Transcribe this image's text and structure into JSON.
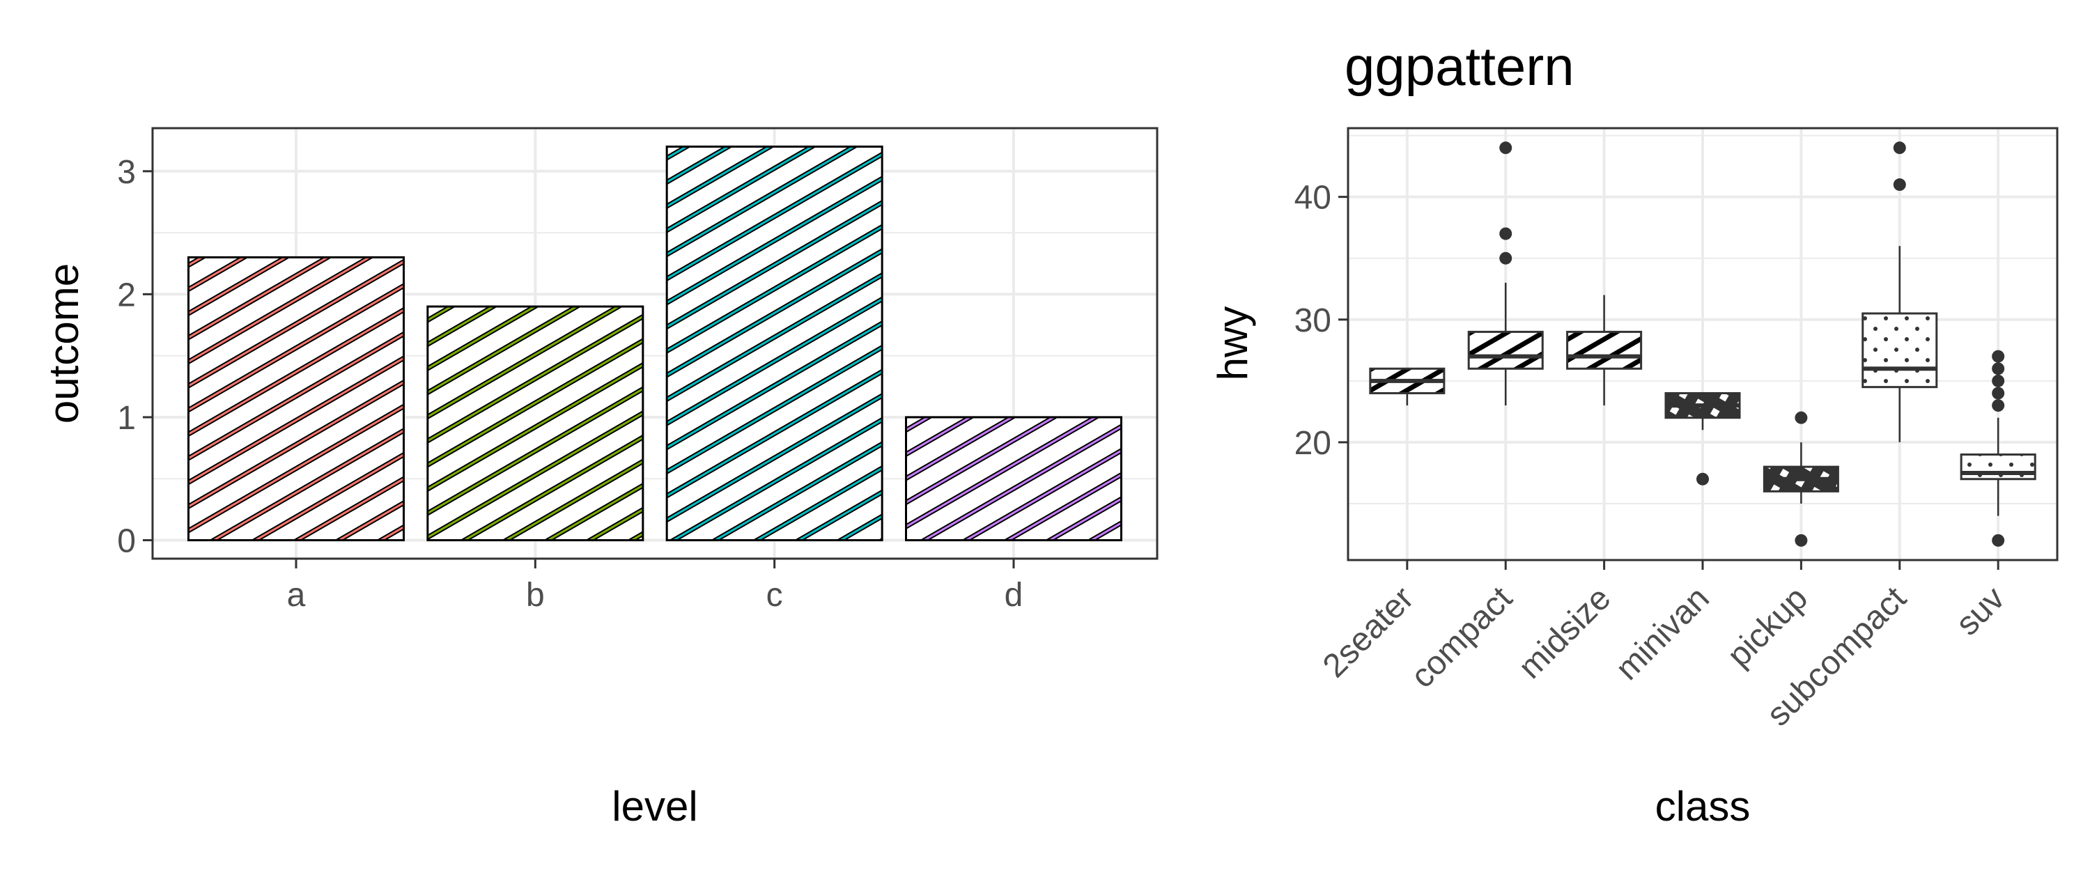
{
  "colors": {
    "panel_border": "#333333",
    "grid": "#ebebeb",
    "box_fill": "#ffffff",
    "box_stroke": "#333333",
    "bar_outline": "#000000"
  },
  "chart_data": [
    {
      "type": "bar",
      "title": "",
      "xlabel": "level",
      "ylabel": "outcome",
      "categories": [
        "a",
        "b",
        "c",
        "d"
      ],
      "values": [
        2.3,
        1.9,
        3.2,
        1.0
      ],
      "pattern": "stripe",
      "pattern_colors": [
        "#f8766d",
        "#7cae00",
        "#00bfc4",
        "#c77cff"
      ],
      "ylim": [
        -0.15,
        3.35
      ],
      "yticks": [
        0,
        1,
        2,
        3
      ],
      "grid": true,
      "legend": "none"
    },
    {
      "type": "box",
      "title": "ggpattern",
      "xlabel": "class",
      "ylabel": "hwy",
      "categories": [
        "2seater",
        "compact",
        "midsize",
        "minivan",
        "pickup",
        "subcompact",
        "suv"
      ],
      "boxes": [
        {
          "name": "2seater",
          "lower": 23,
          "q1": 24,
          "median": 25,
          "q3": 26,
          "upper": 26,
          "outliers": [],
          "pattern": "stripe"
        },
        {
          "name": "compact",
          "lower": 23,
          "q1": 26,
          "median": 27,
          "q3": 29,
          "upper": 33,
          "outliers": [
            35,
            37,
            44
          ],
          "pattern": "stripe"
        },
        {
          "name": "midsize",
          "lower": 23,
          "q1": 26,
          "median": 27,
          "q3": 29,
          "upper": 32,
          "outliers": [],
          "pattern": "stripe"
        },
        {
          "name": "minivan",
          "lower": 21,
          "q1": 22,
          "median": 23,
          "q3": 24,
          "upper": 24,
          "outliers": [
            17
          ],
          "pattern": "crosshatch"
        },
        {
          "name": "pickup",
          "lower": 15,
          "q1": 16,
          "median": 17,
          "q3": 18,
          "upper": 20,
          "outliers": [
            12,
            22
          ],
          "pattern": "crosshatch"
        },
        {
          "name": "subcompact",
          "lower": 20,
          "q1": 24.5,
          "median": 26,
          "q3": 30.5,
          "upper": 36,
          "outliers": [
            41,
            44
          ],
          "pattern": "dots"
        },
        {
          "name": "suv",
          "lower": 14,
          "q1": 17,
          "median": 17.5,
          "q3": 19,
          "upper": 22,
          "outliers": [
            12,
            23,
            24,
            25,
            26,
            27
          ],
          "pattern": "dots"
        }
      ],
      "ylim": [
        10.4,
        45.6
      ],
      "yticks": [
        20,
        30,
        40
      ],
      "grid": true,
      "legend": "none"
    }
  ]
}
